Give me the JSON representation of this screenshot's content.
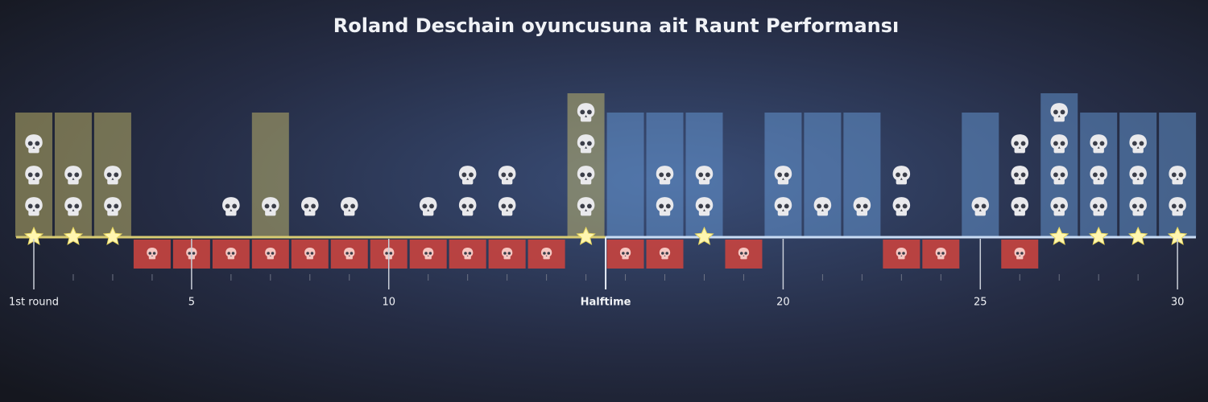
{
  "title": "Roland Deschain oyuncusuna ait Raunt Performansı",
  "first_half_color": "#d9cc72",
  "second_half_color": "#6ea6e6",
  "axis_labels": [
    "1st round",
    null,
    null,
    null,
    "5",
    null,
    null,
    null,
    null,
    "10",
    null,
    null,
    null,
    null,
    null,
    null,
    null,
    null,
    null,
    "20",
    null,
    null,
    null,
    null,
    "25",
    null,
    null,
    null,
    null,
    "30"
  ],
  "halftime_label": "Halftime",
  "rounds": [
    {
      "kills": 3,
      "won": true,
      "mvp": true,
      "died": false
    },
    {
      "kills": 2,
      "won": true,
      "mvp": true,
      "died": false
    },
    {
      "kills": 2,
      "won": true,
      "mvp": true,
      "died": false
    },
    {
      "kills": 0,
      "won": false,
      "mvp": false,
      "died": true
    },
    {
      "kills": 0,
      "won": false,
      "mvp": false,
      "died": true
    },
    {
      "kills": 1,
      "won": false,
      "mvp": false,
      "died": true
    },
    {
      "kills": 1,
      "won": true,
      "mvp": false,
      "died": true
    },
    {
      "kills": 1,
      "won": false,
      "mvp": false,
      "died": true
    },
    {
      "kills": 1,
      "won": false,
      "mvp": false,
      "died": true
    },
    {
      "kills": 0,
      "won": false,
      "mvp": false,
      "died": true
    },
    {
      "kills": 1,
      "won": false,
      "mvp": false,
      "died": true
    },
    {
      "kills": 2,
      "won": false,
      "mvp": false,
      "died": true
    },
    {
      "kills": 2,
      "won": false,
      "mvp": false,
      "died": true
    },
    {
      "kills": 0,
      "won": false,
      "mvp": false,
      "died": true
    },
    {
      "kills": 4,
      "won": true,
      "mvp": true,
      "died": false
    },
    {
      "kills": 0,
      "won": true,
      "mvp": false,
      "died": true
    },
    {
      "kills": 2,
      "won": true,
      "mvp": false,
      "died": true
    },
    {
      "kills": 2,
      "won": true,
      "mvp": true,
      "died": false
    },
    {
      "kills": 0,
      "won": false,
      "mvp": false,
      "died": true
    },
    {
      "kills": 2,
      "won": true,
      "mvp": false,
      "died": false
    },
    {
      "kills": 1,
      "won": true,
      "mvp": false,
      "died": false
    },
    {
      "kills": 1,
      "won": true,
      "mvp": false,
      "died": false
    },
    {
      "kills": 2,
      "won": false,
      "mvp": false,
      "died": true
    },
    {
      "kills": 0,
      "won": false,
      "mvp": false,
      "died": true
    },
    {
      "kills": 1,
      "won": true,
      "mvp": false,
      "died": false
    },
    {
      "kills": 3,
      "won": false,
      "mvp": false,
      "died": true
    },
    {
      "kills": 4,
      "won": true,
      "mvp": true,
      "died": false
    },
    {
      "kills": 3,
      "won": true,
      "mvp": true,
      "died": false
    },
    {
      "kills": 3,
      "won": true,
      "mvp": true,
      "died": false
    },
    {
      "kills": 2,
      "won": true,
      "mvp": true,
      "died": false
    }
  ]
}
